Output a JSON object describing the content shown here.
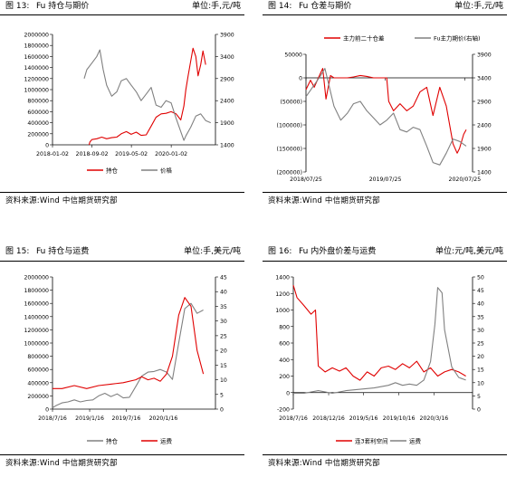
{
  "panels": [
    {
      "fig": "图 13:",
      "title": "Fu 持仓与期价",
      "unit": "单位:手,元/吨",
      "source": "资料来源:Wind  中信期货研究部",
      "chart_data": {
        "type": "line",
        "left_axis": {
          "ticks": [
            "0",
            "200000",
            "400000",
            "600000",
            "800000",
            "1000000",
            "1200000",
            "1400000",
            "1600000",
            "1800000",
            "2000000"
          ],
          "ylim": [
            0,
            2000000
          ]
        },
        "right_axis": {
          "ticks": [
            "1400",
            "1900",
            "2400",
            "2900",
            "3400",
            "3900"
          ],
          "ylim": [
            1400,
            3900
          ]
        },
        "x_ticks": [
          "2018-01-02",
          "2018-09-02",
          "2019-05-02",
          "2020-01-02"
        ],
        "xlim": [
          "2018-01-02",
          "2020-09-30"
        ],
        "legend": [
          "持仓",
          "价格"
        ],
        "legend_position": "bottom",
        "series": [
          {
            "name": "持仓",
            "axis": "left",
            "color": "#e00000",
            "x": [
              "2018-08-15",
              "2018-08-20",
              "2018-09-01",
              "2018-10-01",
              "2018-11-01",
              "2018-12-01",
              "2019-01-01",
              "2019-02-01",
              "2019-03-01",
              "2019-04-01",
              "2019-05-01",
              "2019-06-01",
              "2019-07-01",
              "2019-08-01",
              "2019-09-01",
              "2019-10-01",
              "2019-11-01",
              "2019-12-01",
              "2020-01-01",
              "2020-02-01",
              "2020-03-01",
              "2020-03-20",
              "2020-04-01",
              "2020-04-15",
              "2020-05-01",
              "2020-05-15",
              "2020-06-01",
              "2020-06-15",
              "2020-07-01",
              "2020-07-15",
              "2020-08-01"
            ],
            "values": [
              0,
              50000,
              95000,
              110000,
              140000,
              110000,
              130000,
              140000,
              200000,
              240000,
              190000,
              230000,
              170000,
              180000,
              340000,
              500000,
              560000,
              570000,
              600000,
              560000,
              450000,
              700000,
              1000000,
              1250000,
              1520000,
              1750000,
              1600000,
              1250000,
              1450000,
              1700000,
              1450000
            ]
          },
          {
            "name": "价格",
            "axis": "right",
            "color": "#808080",
            "x": [
              "2018-07-16",
              "2018-08-01",
              "2018-09-01",
              "2018-10-01",
              "2018-10-20",
              "2018-11-10",
              "2018-12-01",
              "2019-01-01",
              "2019-02-01",
              "2019-03-01",
              "2019-04-01",
              "2019-05-01",
              "2019-06-01",
              "2019-07-01",
              "2019-08-01",
              "2019-09-01",
              "2019-10-01",
              "2019-11-01",
              "2019-12-01",
              "2020-01-01",
              "2020-02-01",
              "2020-03-01",
              "2020-03-20",
              "2020-04-01",
              "2020-05-01",
              "2020-06-01",
              "2020-07-01",
              "2020-08-01",
              "2020-09-01"
            ],
            "values": [
              2900,
              3100,
              3250,
              3400,
              3550,
              3100,
              2750,
              2500,
              2600,
              2850,
              2900,
              2750,
              2600,
              2400,
              2550,
              2700,
              2300,
              2250,
              2400,
              2350,
              2000,
              1700,
              1500,
              1600,
              1800,
              2050,
              2100,
              1950,
              1900
            ]
          }
        ]
      }
    },
    {
      "fig": "图 14:",
      "title": "Fu 仓差与期价",
      "unit": "单位:手,元/吨",
      "source": "资料来源:Wind  中信期货研究部",
      "chart_data": {
        "type": "line",
        "left_axis": {
          "ticks": [
            "(200000)",
            "(150000)",
            "(100000)",
            "(50000)",
            "0",
            "50000"
          ],
          "ylim": [
            -200000,
            50000
          ]
        },
        "right_axis": {
          "ticks": [
            "1400",
            "1900",
            "2400",
            "2900",
            "3400",
            "3900"
          ],
          "ylim": [
            1400,
            3900
          ]
        },
        "x_ticks": [
          "2018/07/25",
          "2019/07/25",
          "2020/07/25"
        ],
        "xlim": [
          "2018-07-25",
          "2020-08-30"
        ],
        "legend": [
          "主力前二十仓差",
          "Fu主力期价(右轴)"
        ],
        "legend_position": "top",
        "series": [
          {
            "name": "主力前二十仓差",
            "axis": "left",
            "color": "#e00000",
            "x": [
              "2018-07-25",
              "2018-08-15",
              "2018-09-01",
              "2018-09-20",
              "2018-10-10",
              "2018-10-25",
              "2018-11-15",
              "2018-12-01",
              "2019-01-01",
              "2019-02-01",
              "2019-03-01",
              "2019-04-01",
              "2019-05-01",
              "2019-06-01",
              "2019-07-01",
              "2019-08-01",
              "2019-08-10",
              "2019-09-01",
              "2019-10-01",
              "2019-11-01",
              "2019-12-01",
              "2020-01-01",
              "2020-02-01",
              "2020-03-01",
              "2020-04-01",
              "2020-05-01",
              "2020-06-01",
              "2020-06-20",
              "2020-07-01",
              "2020-07-20",
              "2020-08-01"
            ],
            "values": [
              -25000,
              -5000,
              -20000,
              0,
              20000,
              -45000,
              5000,
              0,
              0,
              0,
              2000,
              5000,
              3000,
              0,
              0,
              0,
              -50000,
              -70000,
              -55000,
              -70000,
              -60000,
              -30000,
              -20000,
              -80000,
              -20000,
              -60000,
              -140000,
              -160000,
              -150000,
              -120000,
              -110000
            ]
          },
          {
            "name": "Fu主力期价(右轴)",
            "axis": "right",
            "color": "#808080",
            "x": [
              "2018-07-25",
              "2018-09-01",
              "2018-10-01",
              "2018-10-20",
              "2018-11-10",
              "2018-12-01",
              "2019-01-01",
              "2019-02-01",
              "2019-03-01",
              "2019-04-01",
              "2019-05-01",
              "2019-06-01",
              "2019-07-01",
              "2019-08-01",
              "2019-09-01",
              "2019-10-01",
              "2019-11-01",
              "2019-12-01",
              "2020-01-01",
              "2020-02-01",
              "2020-03-01",
              "2020-04-01",
              "2020-05-01",
              "2020-06-01",
              "2020-07-01",
              "2020-08-01"
            ],
            "values": [
              3000,
              3250,
              3450,
              3600,
              3200,
              2800,
              2500,
              2650,
              2850,
              2900,
              2700,
              2550,
              2400,
              2500,
              2650,
              2300,
              2250,
              2350,
              2300,
              1950,
              1600,
              1550,
              1800,
              2100,
              2050,
              1950
            ]
          }
        ]
      }
    },
    {
      "fig": "图 15:",
      "title": "Fu 持仓与运费",
      "unit": "单位:手,美元/吨",
      "source": "资料来源:Wind  中信期货研究部",
      "chart_data": {
        "type": "line",
        "left_axis": {
          "ticks": [
            "0",
            "200000",
            "400000",
            "600000",
            "800000",
            "1000000",
            "1200000",
            "1400000",
            "1600000",
            "1800000",
            "2000000"
          ],
          "ylim": [
            0,
            2000000
          ]
        },
        "right_axis": {
          "ticks": [
            "0",
            "5",
            "10",
            "15",
            "20",
            "25",
            "30",
            "35",
            "40",
            "45"
          ],
          "ylim": [
            0,
            45
          ]
        },
        "x_ticks": [
          "2018/7/16",
          "2019/1/16",
          "2019/7/16",
          "2020/1/16"
        ],
        "xlim": [
          "2018-07-16",
          "2020-09-30"
        ],
        "legend": [
          "持仓",
          "运费"
        ],
        "legend_position": "bottom",
        "series": [
          {
            "name": "持仓",
            "axis": "left",
            "color": "#808080",
            "x": [
              "2018-07-16",
              "2018-08-01",
              "2018-09-01",
              "2018-10-01",
              "2018-11-01",
              "2018-12-01",
              "2019-01-01",
              "2019-02-01",
              "2019-03-01",
              "2019-04-01",
              "2019-05-01",
              "2019-06-01",
              "2019-07-01",
              "2019-08-01",
              "2019-09-01",
              "2019-10-01",
              "2019-11-01",
              "2019-12-01",
              "2020-01-01",
              "2020-02-01",
              "2020-03-01",
              "2020-04-01",
              "2020-05-01",
              "2020-06-01",
              "2020-07-01",
              "2020-08-01"
            ],
            "values": [
              20000,
              50000,
              95000,
              110000,
              140000,
              110000,
              130000,
              140000,
              200000,
              240000,
              190000,
              230000,
              170000,
              180000,
              340000,
              500000,
              560000,
              570000,
              600000,
              560000,
              450000,
              1000000,
              1520000,
              1600000,
              1450000,
              1500000
            ]
          },
          {
            "name": "运费",
            "axis": "right",
            "color": "#e00000",
            "x": [
              "2018-07-16",
              "2018-09-01",
              "2018-11-01",
              "2019-01-01",
              "2019-03-01",
              "2019-05-01",
              "2019-07-01",
              "2019-09-01",
              "2019-10-01",
              "2019-11-01",
              "2019-12-01",
              "2020-01-01",
              "2020-02-01",
              "2020-03-01",
              "2020-04-01",
              "2020-05-01",
              "2020-06-01",
              "2020-07-01",
              "2020-08-01"
            ],
            "values": [
              7,
              7,
              8,
              7,
              8,
              8.5,
              9,
              10,
              11,
              10,
              10.5,
              9.5,
              12,
              18,
              32,
              38,
              35,
              20,
              12
            ]
          }
        ]
      }
    },
    {
      "fig": "图 16:",
      "title": "Fu 内外盘价差与运费",
      "unit": "单位:元/吨,美元/吨",
      "source": "资料来源:Wind  中信期货研究部",
      "chart_data": {
        "type": "line",
        "left_axis": {
          "ticks": [
            "-200",
            "0",
            "200",
            "400",
            "600",
            "800",
            "1000",
            "1200",
            "1400"
          ],
          "ylim": [
            -200,
            1400
          ]
        },
        "right_axis": {
          "ticks": [
            "0",
            "5",
            "10",
            "15",
            "20",
            "25",
            "30",
            "35",
            "40",
            "45",
            "50"
          ],
          "ylim": [
            0,
            50
          ]
        },
        "x_ticks": [
          "2018/7/16",
          "2018/12/16",
          "2019/5/16",
          "2019/10/16",
          "2020/3/16"
        ],
        "xlim": [
          "2018-07-16",
          "2020-08-30"
        ],
        "legend": [
          "连3套利空间",
          "运费"
        ],
        "legend_position": "bottom",
        "series": [
          {
            "name": "连3套利空间",
            "axis": "left",
            "color": "#e00000",
            "x": [
              "2018-07-16",
              "2018-08-01",
              "2018-09-01",
              "2018-10-01",
              "2018-10-20",
              "2018-11-01",
              "2018-12-01",
              "2019-01-01",
              "2019-02-01",
              "2019-03-01",
              "2019-04-01",
              "2019-05-01",
              "2019-06-01",
              "2019-07-01",
              "2019-08-01",
              "2019-09-01",
              "2019-10-01",
              "2019-11-01",
              "2019-12-01",
              "2020-01-01",
              "2020-02-01",
              "2020-03-01",
              "2020-04-01",
              "2020-05-01",
              "2020-06-01",
              "2020-07-01",
              "2020-08-01"
            ],
            "values": [
              1300,
              1150,
              1050,
              950,
              1000,
              320,
              250,
              300,
              260,
              300,
              200,
              150,
              250,
              200,
              300,
              320,
              280,
              350,
              300,
              380,
              250,
              300,
              200,
              250,
              280,
              250,
              200
            ]
          },
          {
            "name": "运费",
            "axis": "right",
            "color": "#808080",
            "x": [
              "2018-07-16",
              "2018-09-01",
              "2018-11-01",
              "2019-01-01",
              "2019-03-01",
              "2019-05-01",
              "2019-07-01",
              "2019-09-01",
              "2019-10-01",
              "2019-11-01",
              "2019-12-01",
              "2020-01-01",
              "2020-02-01",
              "2020-03-01",
              "2020-03-20",
              "2020-04-01",
              "2020-04-20",
              "2020-05-01",
              "2020-06-01",
              "2020-07-01",
              "2020-08-01"
            ],
            "values": [
              6,
              6,
              7,
              6,
              7,
              7.5,
              8,
              9,
              10,
              9,
              9.5,
              9,
              11,
              18,
              32,
              46,
              44,
              30,
              16,
              12,
              11
            ]
          }
        ]
      }
    }
  ]
}
